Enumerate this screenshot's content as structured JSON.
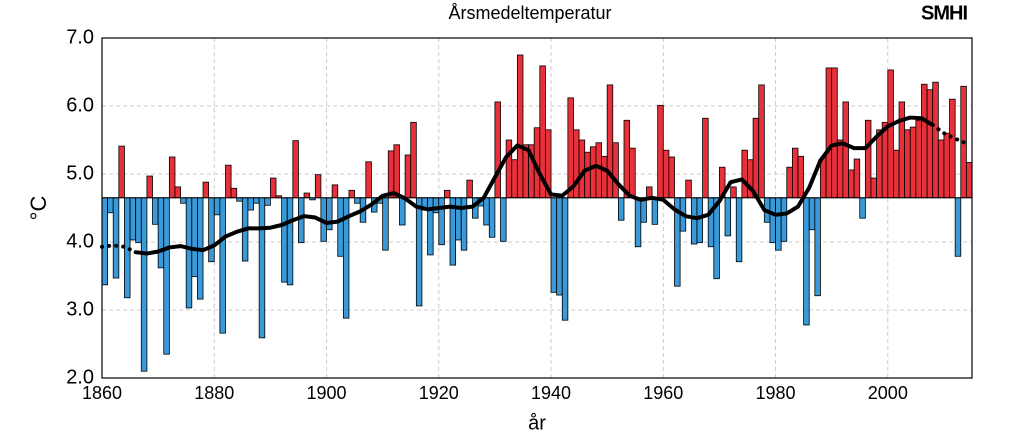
{
  "chart_data": {
    "type": "bar",
    "title": "Årsmedeltemperatur",
    "logo": "SMHI",
    "ylabel": "°C",
    "xlabel": "år",
    "baseline": 4.65,
    "above_color": "#e8303a",
    "below_color": "#3a9ad9",
    "grid": true,
    "xlim": [
      1860,
      2015
    ],
    "ylim": [
      2.0,
      7.0
    ],
    "xticks": [
      1860,
      1880,
      1900,
      1920,
      1940,
      1960,
      1980,
      2000
    ],
    "yticks": [
      {
        "value": 2,
        "label": "2.0"
      },
      {
        "value": 3,
        "label": "3.0"
      },
      {
        "value": 4,
        "label": "4.0"
      },
      {
        "value": 5,
        "label": "5.0"
      },
      {
        "value": 6,
        "label": "6.0"
      },
      {
        "value": 7,
        "label": "7.0"
      }
    ],
    "x": [
      1860,
      1861,
      1862,
      1863,
      1864,
      1865,
      1866,
      1867,
      1868,
      1869,
      1870,
      1871,
      1872,
      1873,
      1874,
      1875,
      1876,
      1877,
      1878,
      1879,
      1880,
      1881,
      1882,
      1883,
      1884,
      1885,
      1886,
      1887,
      1888,
      1889,
      1890,
      1891,
      1892,
      1893,
      1894,
      1895,
      1896,
      1897,
      1898,
      1899,
      1900,
      1901,
      1902,
      1903,
      1904,
      1905,
      1906,
      1907,
      1908,
      1909,
      1910,
      1911,
      1912,
      1913,
      1914,
      1915,
      1916,
      1917,
      1918,
      1919,
      1920,
      1921,
      1922,
      1923,
      1924,
      1925,
      1926,
      1927,
      1928,
      1929,
      1930,
      1931,
      1932,
      1933,
      1934,
      1935,
      1936,
      1937,
      1938,
      1939,
      1940,
      1941,
      1942,
      1943,
      1944,
      1945,
      1946,
      1947,
      1948,
      1949,
      1950,
      1951,
      1952,
      1953,
      1954,
      1955,
      1956,
      1957,
      1958,
      1959,
      1960,
      1961,
      1962,
      1963,
      1964,
      1965,
      1966,
      1967,
      1968,
      1969,
      1970,
      1971,
      1972,
      1973,
      1974,
      1975,
      1976,
      1977,
      1978,
      1979,
      1980,
      1981,
      1982,
      1983,
      1984,
      1985,
      1986,
      1987,
      1988,
      1989,
      1990,
      1991,
      1992,
      1993,
      1994,
      1995,
      1996,
      1997,
      1998,
      1999,
      2000,
      2001,
      2002,
      2003,
      2004,
      2005,
      2006,
      2007,
      2008,
      2009,
      2010,
      2011,
      2012,
      2013,
      2014
    ],
    "values": [
      3.37,
      4.43,
      3.47,
      5.41,
      3.18,
      4.03,
      3.99,
      2.1,
      4.97,
      4.26,
      3.62,
      2.35,
      5.25,
      4.81,
      4.57,
      3.03,
      3.49,
      3.16,
      4.88,
      3.71,
      4.4,
      2.66,
      5.13,
      4.79,
      4.6,
      3.72,
      4.47,
      4.57,
      2.59,
      4.54,
      4.94,
      4.68,
      3.41,
      3.37,
      5.49,
      3.99,
      4.72,
      4.62,
      4.99,
      4.01,
      4.18,
      4.84,
      3.79,
      2.88,
      4.76,
      4.57,
      4.29,
      5.18,
      4.44,
      4.57,
      3.88,
      5.34,
      5.43,
      4.25,
      5.28,
      5.76,
      3.06,
      4.47,
      3.81,
      4.43,
      3.96,
      4.76,
      3.66,
      4.03,
      3.88,
      4.91,
      4.35,
      4.53,
      4.25,
      4.07,
      6.06,
      4.01,
      5.5,
      5.21,
      6.75,
      5.43,
      5.43,
      5.68,
      6.59,
      5.65,
      3.26,
      3.22,
      2.85,
      6.12,
      5.65,
      5.5,
      5.32,
      5.4,
      5.46,
      5.26,
      6.31,
      5.46,
      4.32,
      5.79,
      5.38,
      3.93,
      4.29,
      4.81,
      4.26,
      6.01,
      5.35,
      5.25,
      3.35,
      4.16,
      4.91,
      3.97,
      3.99,
      5.82,
      3.93,
      3.46,
      5.1,
      4.09,
      4.81,
      3.71,
      5.35,
      5.21,
      5.82,
      6.31,
      4.29,
      3.99,
      3.88,
      4.01,
      5.1,
      5.38,
      5.26,
      2.78,
      4.18,
      3.21,
      5.24,
      6.56,
      6.56,
      5.5,
      6.06,
      5.06,
      5.22,
      4.35,
      5.79,
      4.94,
      5.65,
      5.76,
      6.53,
      5.35,
      6.06,
      5.65,
      5.69,
      5.79,
      6.32,
      6.24,
      6.35,
      5.5,
      5.6,
      6.1,
      3.79,
      6.29,
      5.17
    ],
    "trend": {
      "color": "#000000",
      "x": [
        1866,
        1868,
        1870,
        1872,
        1874,
        1876,
        1878,
        1880,
        1882,
        1884,
        1886,
        1888,
        1890,
        1892,
        1894,
        1896,
        1898,
        1900,
        1902,
        1904,
        1906,
        1908,
        1910,
        1912,
        1914,
        1916,
        1918,
        1920,
        1922,
        1924,
        1926,
        1928,
        1930,
        1932,
        1934,
        1936,
        1938,
        1940,
        1942,
        1944,
        1946,
        1948,
        1950,
        1952,
        1954,
        1956,
        1958,
        1960,
        1962,
        1964,
        1966,
        1968,
        1970,
        1972,
        1974,
        1976,
        1978,
        1980,
        1982,
        1984,
        1986,
        1988,
        1990,
        1992,
        1994,
        1996,
        1998,
        2000,
        2002,
        2004,
        2006,
        2008
      ],
      "values": [
        3.85,
        3.83,
        3.86,
        3.92,
        3.94,
        3.9,
        3.88,
        3.95,
        4.08,
        4.15,
        4.2,
        4.2,
        4.21,
        4.25,
        4.32,
        4.38,
        4.36,
        4.28,
        4.3,
        4.38,
        4.45,
        4.55,
        4.68,
        4.72,
        4.64,
        4.52,
        4.48,
        4.5,
        4.52,
        4.5,
        4.52,
        4.65,
        4.95,
        5.25,
        5.42,
        5.35,
        5.0,
        4.7,
        4.68,
        4.82,
        5.05,
        5.12,
        5.05,
        4.85,
        4.68,
        4.62,
        4.65,
        4.62,
        4.48,
        4.38,
        4.35,
        4.4,
        4.6,
        4.88,
        4.92,
        4.75,
        4.47,
        4.4,
        4.42,
        4.52,
        4.8,
        5.2,
        5.42,
        5.45,
        5.38,
        5.38,
        5.55,
        5.7,
        5.78,
        5.83,
        5.82,
        5.72
      ]
    },
    "trend_ends": {
      "color": "#000000",
      "x": [
        1860,
        1862,
        1864,
        1866,
        1937,
        2008,
        2010,
        2012,
        2014
      ],
      "values": [
        3.93,
        3.95,
        3.93,
        3.85,
        null,
        5.72,
        5.6,
        5.52,
        5.45
      ]
    }
  }
}
